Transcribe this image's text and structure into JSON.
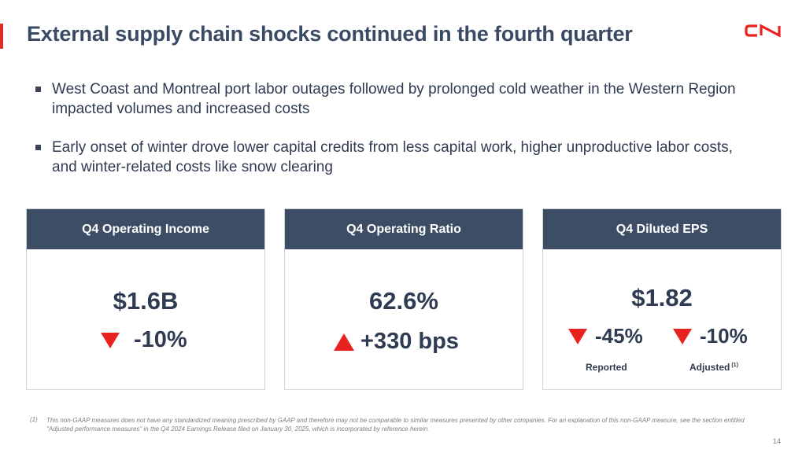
{
  "slide": {
    "title": "External supply chain shocks continued in the fourth quarter",
    "logo_text": "CN",
    "bullets": [
      {
        "text": "West Coast and Montreal port labor outages followed by prolonged cold weather in the Western Region impacted volumes and increased costs"
      },
      {
        "text": "Early onset of winter drove lower capital credits from less capital work, higher unproductive labor costs, and winter-related costs like snow clearing"
      }
    ],
    "cards": [
      {
        "header": "Q4 Operating Income",
        "value": "$1.6B",
        "change": "-10%",
        "direction": "down"
      },
      {
        "header": "Q4 Operating Ratio",
        "value": "62.6%",
        "change": "+330 bps",
        "direction": "up"
      },
      {
        "header": "Q4 Diluted EPS",
        "value": "$1.82",
        "reported_change": "-45%",
        "reported_label": "Reported",
        "adjusted_change": "-10%",
        "adjusted_label": "Adjusted",
        "adjusted_note": "(1)"
      }
    ],
    "footnote_marker": "(1)",
    "footnote": "This non-GAAP measures does not have any standardized meaning prescribed by GAAP and therefore may not be comparable to similar measures presented by other companies. For an explanation of this non-GAAP measure, see the section entitled \"Adjusted performance measures\" in the Q4 2024 Earnings Release filed on January 30, 2025, which is incorporated by reference herein.",
    "page_number": "14"
  },
  "colors": {
    "accent_red": "#e8231f",
    "header_navy": "#3e4d66",
    "text_dark": "#2f3b52"
  },
  "icons": {
    "down": "red-down-triangle-icon",
    "up": "red-up-triangle-icon"
  }
}
